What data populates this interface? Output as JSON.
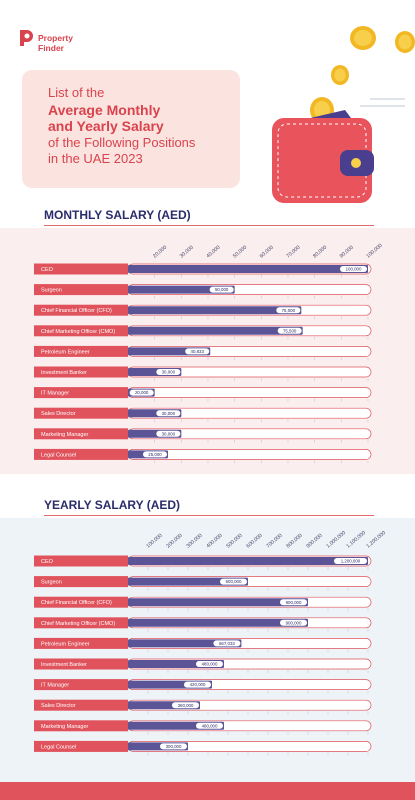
{
  "brand": {
    "name_line1": "Property",
    "name_line2": "Finder",
    "accent": "#d9434e"
  },
  "hero": {
    "line1": "List of the",
    "line2": "Average Monthly",
    "line3": "and Yearly Salary",
    "line4": "of the Following Positions",
    "line5": "in the UAE 2023"
  },
  "colors": {
    "label_bg": "#e0535c",
    "bar": "#5b5597",
    "track": "#ffffff",
    "track_border": "#e0535c",
    "title": "#2a2d6b",
    "panel_monthly": "#fbeeee",
    "panel_yearly": "#eef3f8"
  },
  "chart_data": [
    {
      "type": "bar",
      "title": "MONTHLY SALARY (AED)",
      "orientation": "horizontal",
      "categories": [
        "CEO",
        "Surgeon",
        "Chief Financial Officer (CFO)",
        "Chief Marketing Officer (CMO)",
        "Petroleum Engineer",
        "Investment Banker",
        "IT Manager",
        "Sales Director",
        "Marketing Manager",
        "Legal Counsel"
      ],
      "values": [
        100000,
        50000,
        75000,
        75500,
        40833,
        30000,
        20000,
        30000,
        30000,
        25000
      ],
      "value_labels": [
        "100,000",
        "50,000",
        "75,000",
        "75,500",
        "40,833",
        "30,000",
        "20,000",
        "30,000",
        "30,000",
        "25,000"
      ],
      "ticks": [
        20000,
        30000,
        40000,
        50000,
        60000,
        70000,
        80000,
        90000,
        100000
      ],
      "tick_labels": [
        "20,000",
        "30,000",
        "40,000",
        "50,000",
        "60,000",
        "70,000",
        "80,000",
        "90,000",
        "100,000"
      ],
      "xlim": [
        10000,
        100000
      ]
    },
    {
      "type": "bar",
      "title": "YEARLY SALARY (AED)",
      "orientation": "horizontal",
      "categories": [
        "CEO",
        "Surgeon",
        "Chief Financial Officer (CFO)",
        "Chief Marketing Officer (CMO)",
        "Petroleum Engineer",
        "Investment Banker",
        "IT Manager",
        "Sales Director",
        "Marketing Manager",
        "Legal Counsel"
      ],
      "values": [
        1200000,
        600000,
        900000,
        900000,
        567033,
        480000,
        420000,
        360000,
        480000,
        300000
      ],
      "value_labels": [
        "1,200,000",
        "600,000",
        "900,000",
        "900,000",
        "567,033",
        "480,000",
        "420,000",
        "360,000",
        "480,000",
        "300,000"
      ],
      "ticks": [
        100000,
        200000,
        300000,
        400000,
        500000,
        600000,
        700000,
        800000,
        900000,
        1000000,
        1100000,
        1200000
      ],
      "tick_labels": [
        "100,000",
        "200,000",
        "300,000",
        "400,000",
        "500,000",
        "600,000",
        "700,000",
        "800,000",
        "900,000",
        "1,000,000",
        "1,100,000",
        "1,200,000"
      ],
      "xlim": [
        0,
        1200000
      ]
    }
  ]
}
